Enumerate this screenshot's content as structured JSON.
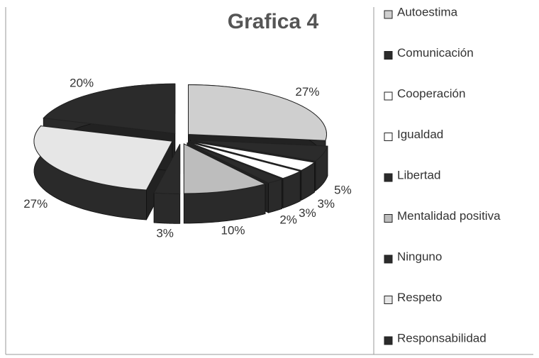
{
  "chart_data": {
    "type": "pie",
    "title": "Grafica 4",
    "categories": [
      "Autoestima",
      "Comunicación",
      "Cooperación",
      "Igualdad",
      "Libertad",
      "Mentalidad positiva",
      "Ninguno",
      "Respeto",
      "Responsabilidad"
    ],
    "values": [
      27,
      5,
      3,
      3,
      2,
      10,
      3,
      27,
      20
    ],
    "value_labels": [
      "27%",
      "5%",
      "3%",
      "3%",
      "2%",
      "10%",
      "3%",
      "27%",
      "20%"
    ],
    "colors": [
      "#cfcfcf",
      "#2b2b2b",
      "#ffffff",
      "#ffffff",
      "#2b2b2b",
      "#bdbdbd",
      "#2b2b2b",
      "#e6e6e6",
      "#2b2b2b"
    ],
    "legend": "right"
  }
}
